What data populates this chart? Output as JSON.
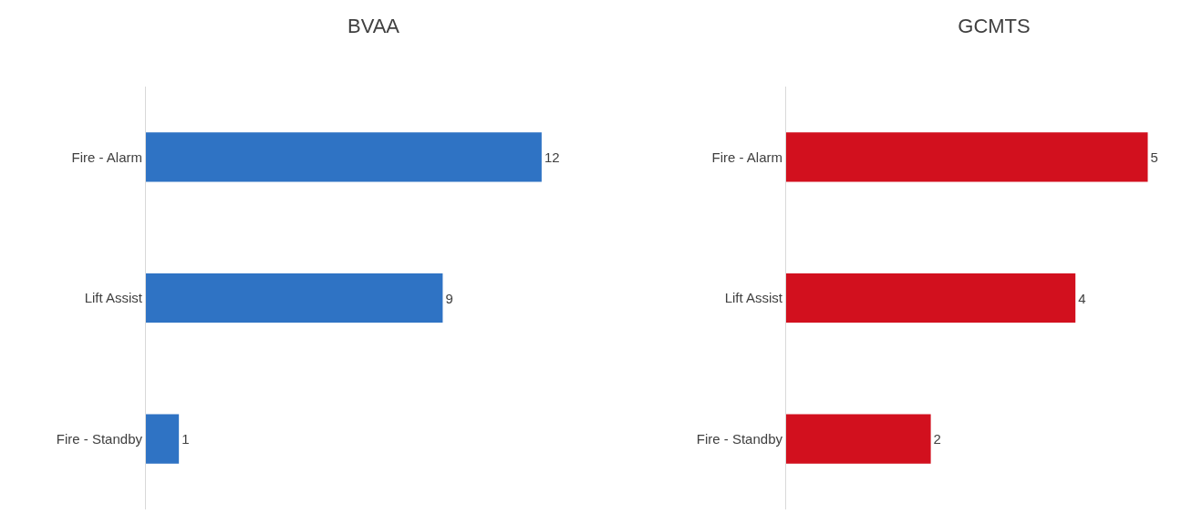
{
  "chart_data": [
    {
      "type": "bar",
      "title": "BVAA",
      "orientation": "horizontal",
      "categories": [
        "Fire - Alarm",
        "Lift Assist",
        "Fire - Standby"
      ],
      "values": [
        12,
        9,
        1
      ],
      "color": "#2f73c4",
      "data_labels": true,
      "grid": false,
      "legend": false,
      "tick_labels": "y"
    },
    {
      "type": "bar",
      "title": "GCMTS",
      "orientation": "horizontal",
      "categories": [
        "Fire - Alarm",
        "Lift Assist",
        "Fire - Standby"
      ],
      "values": [
        5,
        4,
        2
      ],
      "color": "#d2101e",
      "data_labels": true,
      "grid": false,
      "legend": false,
      "tick_labels": "y"
    }
  ]
}
